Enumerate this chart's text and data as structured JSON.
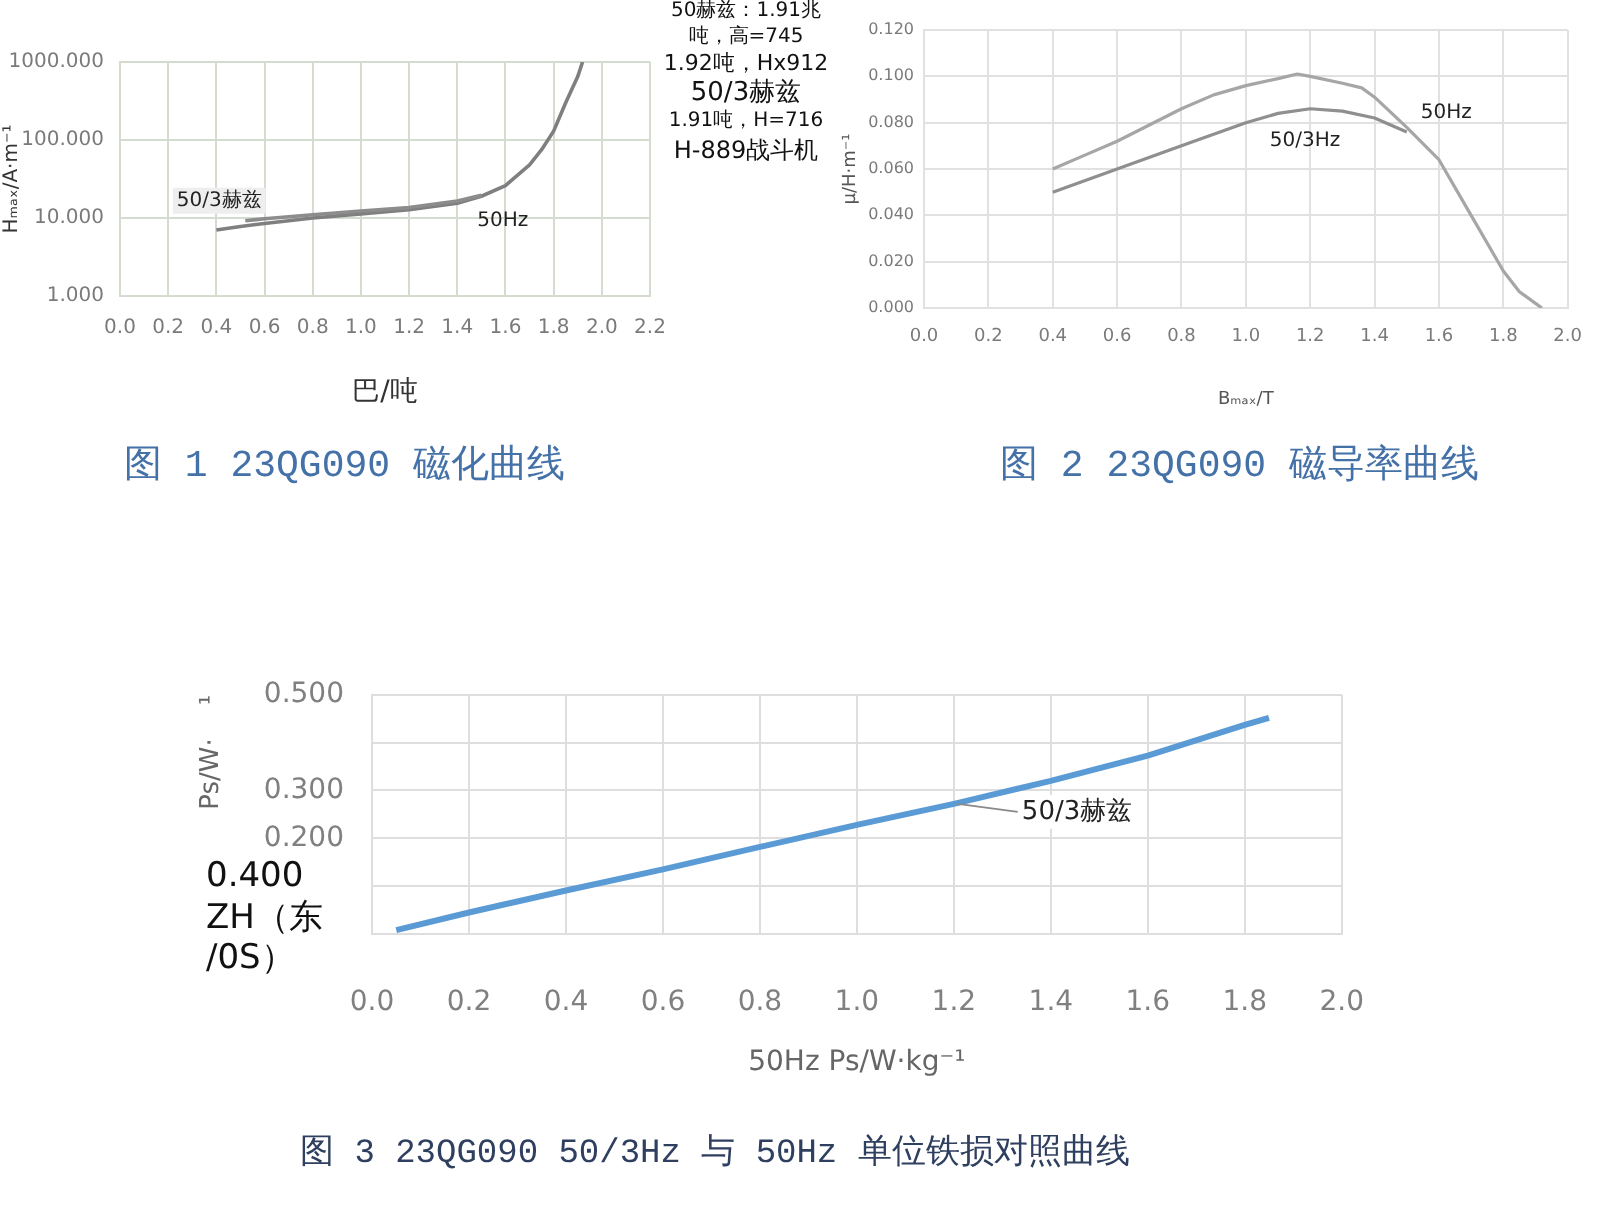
{
  "chart_data": [
    {
      "type": "line",
      "title": "图 1 23QG090 磁化曲线",
      "xlabel": "巴/吨",
      "ylabel": "Hₘₐₓ/A·m⁻¹",
      "log": "y",
      "grid": true,
      "legend": false,
      "marker": "none",
      "xlim": [
        0,
        2.2
      ],
      "xticks": [
        {
          "value": 0,
          "label": "0.0"
        },
        0.2,
        0.4,
        0.6,
        0.8,
        {
          "value": 1,
          "label": "1.0"
        },
        1.2,
        1.4,
        1.6,
        1.8,
        {
          "value": 2,
          "label": "2.0"
        },
        2.2
      ],
      "ylim": [
        1,
        1000
      ],
      "yticks": [
        {
          "value": 1,
          "label": "1.000"
        },
        {
          "value": 10,
          "label": "10.000"
        },
        {
          "value": 100,
          "label": "100.000"
        },
        {
          "value": 1000,
          "label": "1000.000"
        }
      ],
      "series": [
        {
          "name": "50/3赫兹",
          "color": "#8c8c8c",
          "x": [
            0.52,
            0.6,
            0.8,
            1.0,
            1.2,
            1.4,
            1.5
          ],
          "values": [
            9.2,
            9.8,
            11,
            12.3,
            13.6,
            16.5,
            19.5
          ]
        },
        {
          "name": "50Hz",
          "color": "#7f7f7f",
          "x": [
            0.4,
            0.5,
            0.6,
            0.8,
            1.0,
            1.2,
            1.4,
            1.5,
            1.6,
            1.7,
            1.75,
            1.8,
            1.85,
            1.9,
            1.92
          ],
          "values": [
            7.0,
            7.8,
            8.5,
            10,
            11.3,
            12.8,
            15.5,
            19,
            26,
            48,
            75,
            130,
            300,
            650,
            1000
          ]
        }
      ],
      "annotations": [
        "50赫兹：1.91兆吨，高=745",
        "1.92吨，Hx912",
        "50/3赫兹",
        "1.91吨，H=716",
        "H-889战斗机"
      ]
    },
    {
      "type": "line",
      "title": "图 2 23QG090 磁导率曲线",
      "xlabel": "Bₘₐₓ/T",
      "ylabel": "μ/H·m⁻¹",
      "grid": true,
      "legend": false,
      "marker": "none",
      "xlim": [
        0,
        2
      ],
      "xticks": [
        {
          "value": 0,
          "label": "0.0"
        },
        0.2,
        0.4,
        0.6,
        0.8,
        {
          "value": 1,
          "label": "1.0"
        },
        1.2,
        1.4,
        1.6,
        1.8,
        {
          "value": 2,
          "label": "2.0"
        }
      ],
      "ylim": [
        0,
        0.12
      ],
      "yticks": [
        {
          "value": 0,
          "label": "0.000"
        },
        {
          "value": 0.02,
          "label": "0.020"
        },
        {
          "value": 0.04,
          "label": "0.040"
        },
        {
          "value": 0.06,
          "label": "0.060"
        },
        {
          "value": 0.08,
          "label": "0.080"
        },
        {
          "value": 0.1,
          "label": "0.100"
        },
        {
          "value": 0.12,
          "label": "0.120"
        }
      ],
      "series": [
        {
          "name": "50Hz",
          "color": "#a6a6a6",
          "x": [
            0.4,
            0.5,
            0.6,
            0.7,
            0.8,
            0.9,
            1.0,
            1.1,
            1.16,
            1.2,
            1.3,
            1.36,
            1.4,
            1.5,
            1.6,
            1.7,
            1.8,
            1.85,
            1.9,
            1.92
          ],
          "values": [
            0.06,
            0.066,
            0.072,
            0.079,
            0.086,
            0.092,
            0.096,
            0.099,
            0.101,
            0.1,
            0.097,
            0.095,
            0.091,
            0.078,
            0.064,
            0.04,
            0.016,
            0.007,
            0.002,
            0.0
          ]
        },
        {
          "name": "50/3Hz",
          "color": "#8f8f8f",
          "x": [
            0.4,
            0.6,
            0.8,
            1.0,
            1.1,
            1.2,
            1.3,
            1.4,
            1.5
          ],
          "values": [
            0.05,
            0.06,
            0.07,
            0.08,
            0.084,
            0.086,
            0.085,
            0.082,
            0.076
          ]
        }
      ]
    },
    {
      "type": "line",
      "title": "图 3 23QG090 50/3Hz 与 50Hz 单位铁损对照曲线",
      "xlabel": "50Hz Ps/W·kg⁻¹",
      "ylabel": "Ps/W·    ¹",
      "grid": true,
      "legend": false,
      "marker": "none",
      "xlim": [
        0,
        2
      ],
      "xticks": [
        {
          "value": 0,
          "label": "0.0"
        },
        0.2,
        0.4,
        0.6,
        0.8,
        {
          "value": 1,
          "label": "1.0"
        },
        1.2,
        1.4,
        1.6,
        1.8,
        {
          "value": 2,
          "label": "2.0"
        }
      ],
      "ylim": [
        0,
        0.5
      ],
      "yticks": [
        {
          "value": 0,
          "label": null
        },
        {
          "value": 0.1,
          "label": null
        },
        {
          "value": 0.2,
          "label": "0.200"
        },
        {
          "value": 0.3,
          "label": "0.300"
        },
        {
          "value": 0.4,
          "label": null
        },
        {
          "value": 0.5,
          "label": "0.500"
        }
      ],
      "series": [
        {
          "name": "50/3赫兹",
          "color": "#5b9bd5",
          "x": [
            0.05,
            0.2,
            0.4,
            0.6,
            0.8,
            1.0,
            1.2,
            1.4,
            1.6,
            1.8,
            1.85
          ],
          "values": [
            0.008,
            0.045,
            0.091,
            0.135,
            0.182,
            0.228,
            0.272,
            0.32,
            0.373,
            0.437,
            0.452
          ]
        }
      ],
      "annotations": [
        "0.400\nZH（东\n/0S）"
      ]
    }
  ]
}
